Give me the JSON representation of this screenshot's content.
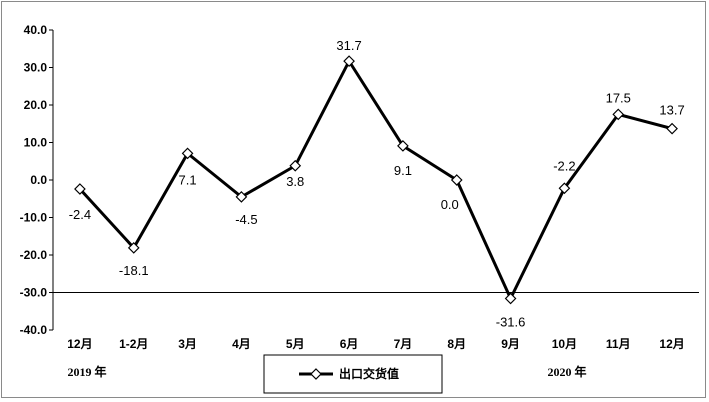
{
  "chart_data": {
    "type": "line",
    "title": "",
    "xlabel": "",
    "ylabel": "",
    "categories": [
      "12月",
      "1-2月",
      "3月",
      "4月",
      "5月",
      "6月",
      "7月",
      "8月",
      "9月",
      "10月",
      "11月",
      "12月"
    ],
    "series": [
      {
        "name": "出口交货值",
        "values": [
          -2.4,
          -18.1,
          7.1,
          -4.5,
          3.8,
          31.7,
          9.1,
          0.0,
          -31.6,
          -2.2,
          17.5,
          13.7
        ],
        "labels": [
          "-2.4",
          "-18.1",
          "7.1",
          "-4.5",
          "3.8",
          "31.7",
          "9.1",
          "0.0",
          "-31.6",
          "-2.2",
          "17.5",
          "13.7"
        ],
        "color": "#000000",
        "marker": "diamond-open"
      }
    ],
    "ylim": [
      -40,
      40
    ],
    "yticks": [
      "40.0",
      "30.0",
      "20.0",
      "10.0",
      "0.0",
      "-10.0",
      "-20.0",
      "-30.0",
      "-40.0"
    ],
    "year_labels": [
      "2019 年",
      "2020 年"
    ],
    "grid": false,
    "legend_position": "bottom-center"
  }
}
